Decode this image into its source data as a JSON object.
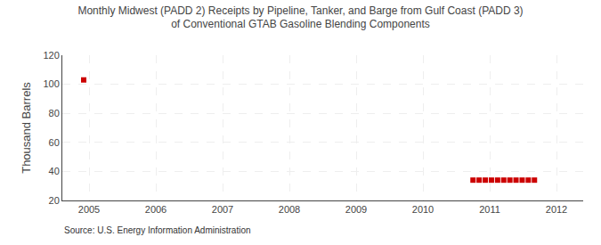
{
  "chart_data": {
    "type": "scatter",
    "title": "Monthly Midwest (PADD 2) Receipts by Pipeline, Tanker, and Barge from Gulf Coast (PADD 3)\nof Conventional GTAB Gasoline Blending Components",
    "ylabel": "Thousand Barrels",
    "annotations": [
      "Source: U.S. Energy Information Administration"
    ],
    "series": [
      {
        "x": [
          2004.92
        ],
        "values": [
          103
        ],
        "color": "#cc0000",
        "marker": "square"
      },
      {
        "x": [
          2010.75,
          2010.842,
          2010.934,
          2011.026,
          2011.118,
          2011.21,
          2011.302,
          2011.394,
          2011.486,
          2011.578,
          2011.67
        ],
        "values": [
          34,
          34,
          34,
          34,
          34,
          34,
          34,
          34,
          34,
          34,
          34
        ],
        "color": "#cc0000",
        "marker": "square"
      }
    ],
    "xlim": [
      2004.6,
      2012.4
    ],
    "xticks": [
      2005,
      2006,
      2007,
      2008,
      2009,
      2010,
      2011,
      2012
    ],
    "ylim": [
      20,
      120
    ],
    "yticks": [
      20,
      40,
      60,
      80,
      100,
      120
    ],
    "grid": true
  }
}
